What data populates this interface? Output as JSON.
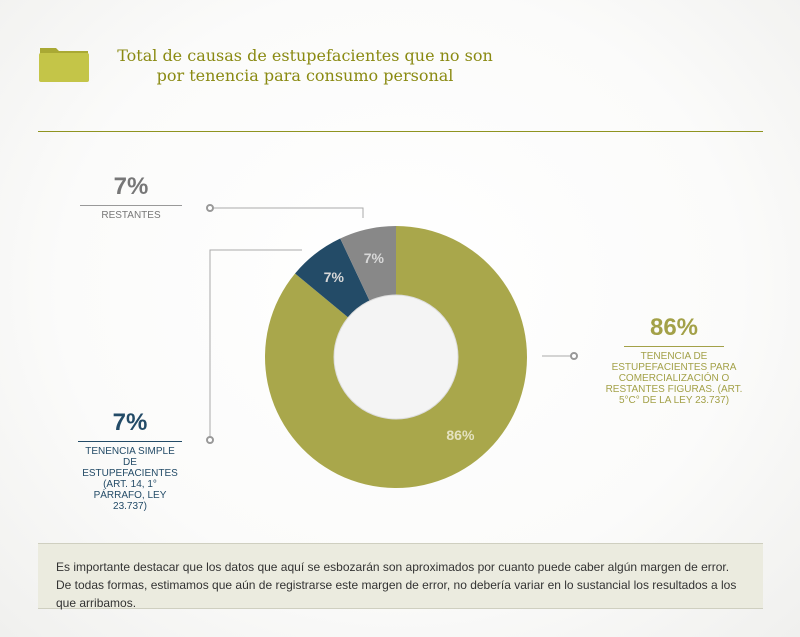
{
  "title": "Total de causas de estupefacientes que no son por tenencia para consumo personal",
  "title_lines": [
    "Total de causas de estupefacientes que no son",
    "por tenencia para consumo personal"
  ],
  "note": "Es importante destacar que los datos que aquí se esbozarán son aproximados por cuanto puede caber algún margen de error. De todas formas, estimamos que aún de registrarse este margen de error, no debería variar en lo sustancial los resultados a los que arribamos.",
  "chart_data": {
    "type": "pie",
    "title": "Total de causas de estupefacientes que no son por tenencia para consumo personal",
    "slices": [
      {
        "label": "Tenencia de estupefacientes para comercialización o restantes figuras. (Art. 5°C° de la Ley 23.737)",
        "value": 86,
        "display": "86%",
        "color": "#a9a74b"
      },
      {
        "label": "Tenencia simple de estupefacientes (Art. 14, 1° párrafo, Ley 23.737)",
        "value": 7,
        "display": "7%",
        "color": "#234b67"
      },
      {
        "label": "Restantes",
        "value": 7,
        "display": "7%",
        "color": "#888888"
      }
    ]
  },
  "labels": {
    "restantes": {
      "pct": "7%",
      "desc": "Restantes"
    },
    "simple": {
      "pct": "7%",
      "desc": "Tenencia simple de estupefacientes (Art. 14, 1° párrafo, Ley 23.737)"
    },
    "comercial": {
      "pct": "86%",
      "desc": "Tenencia de estupefacientes para comercialización o restantes figuras. (Art. 5°C° de la Ley 23.737)"
    }
  }
}
